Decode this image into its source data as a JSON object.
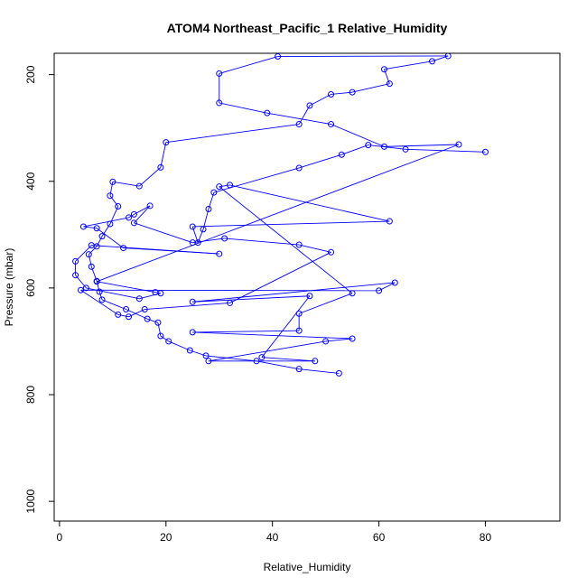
{
  "chart_data": {
    "type": "line",
    "title": "ATOM4 Northeast_Pacific_1 Relative_Humidity",
    "xlabel": "Relative_Humidity",
    "ylabel": "Pressure (mbar)",
    "xlim": [
      -1,
      94
    ],
    "ylim": [
      1037,
      160
    ],
    "y_reversed": true,
    "xticks": [
      0,
      20,
      40,
      60,
      80
    ],
    "yticks": [
      200,
      400,
      600,
      800,
      1000
    ],
    "grid": false,
    "series": [
      {
        "color": "#0000ff",
        "marker": "open-circle",
        "points": [
          [
            52.5,
            760
          ],
          [
            45,
            752
          ],
          [
            37,
            737
          ],
          [
            27.5,
            727
          ],
          [
            24.5,
            717
          ],
          [
            20.5,
            700
          ],
          [
            19,
            690
          ],
          [
            18.5,
            665
          ],
          [
            16.5,
            658
          ],
          [
            12.5,
            640
          ],
          [
            8,
            622
          ],
          [
            7.5,
            607
          ],
          [
            7,
            587
          ],
          [
            6,
            560
          ],
          [
            5.5,
            537
          ],
          [
            7,
            522
          ],
          [
            8,
            503
          ],
          [
            9.5,
            480
          ],
          [
            11,
            447
          ],
          [
            9.5,
            427
          ],
          [
            10,
            401
          ],
          [
            15,
            409
          ],
          [
            19,
            374
          ],
          [
            20,
            327
          ],
          [
            45,
            293
          ],
          [
            47,
            258
          ],
          [
            51,
            237
          ],
          [
            55,
            233
          ],
          [
            62,
            217
          ],
          [
            61,
            190
          ],
          [
            70,
            175
          ],
          [
            73,
            165
          ],
          [
            41,
            166
          ],
          [
            30,
            198
          ],
          [
            30,
            253
          ],
          [
            39,
            272
          ],
          [
            51,
            293
          ],
          [
            61,
            335
          ],
          [
            75,
            331
          ],
          [
            7,
            588
          ],
          [
            18,
            608
          ],
          [
            19,
            610
          ],
          [
            15,
            620
          ],
          [
            5,
            600
          ],
          [
            3,
            576
          ],
          [
            3,
            550
          ],
          [
            6,
            520
          ],
          [
            30,
            536
          ],
          [
            12,
            525
          ],
          [
            7,
            488
          ],
          [
            4.5,
            485
          ],
          [
            13,
            468
          ],
          [
            14,
            462
          ],
          [
            17,
            446
          ],
          [
            14,
            478
          ],
          [
            25,
            515
          ],
          [
            31,
            507
          ],
          [
            45,
            519
          ],
          [
            51,
            533
          ],
          [
            32,
            628
          ],
          [
            16,
            640
          ],
          [
            13,
            654
          ],
          [
            11,
            650
          ],
          [
            4,
            604
          ],
          [
            60,
            605
          ],
          [
            63,
            590
          ],
          [
            25,
            626
          ],
          [
            47,
            615
          ],
          [
            38,
            730
          ],
          [
            48,
            737
          ],
          [
            28,
            737
          ],
          [
            50,
            700
          ],
          [
            55,
            695
          ],
          [
            25,
            683
          ],
          [
            45,
            680
          ],
          [
            45,
            648
          ],
          [
            55,
            610
          ],
          [
            30,
            410
          ],
          [
            32,
            407
          ],
          [
            62,
            475
          ],
          [
            25,
            485
          ],
          [
            26,
            515
          ],
          [
            27,
            490
          ],
          [
            28,
            452
          ],
          [
            29,
            421
          ],
          [
            45,
            375
          ],
          [
            53,
            350
          ],
          [
            58,
            332
          ],
          [
            65,
            340
          ],
          [
            80,
            345
          ]
        ]
      }
    ]
  }
}
